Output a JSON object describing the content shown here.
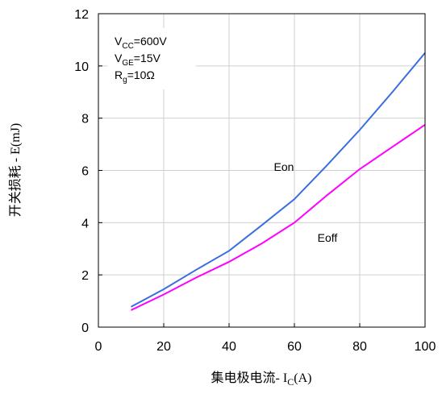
{
  "chart_data": {
    "type": "line",
    "x_label": {
      "main": "集电极电流- I",
      "sub": "C",
      "rest": "(A)"
    },
    "y_label": "开关损耗 - E(mJ)",
    "conditions": [
      {
        "main": "V",
        "sub": "CC",
        "rest": "=600V"
      },
      {
        "main": "V",
        "sub": "GE",
        "rest": "=15V"
      },
      {
        "main": "R",
        "sub": "g",
        "rest": "=10Ω"
      }
    ],
    "x": [
      10,
      20,
      30,
      40,
      50,
      60,
      70,
      80,
      90,
      100
    ],
    "series": [
      {
        "name": "Eon",
        "color": "#3a6de0",
        "values": [
          0.78,
          1.45,
          2.2,
          2.92,
          3.9,
          4.9,
          6.2,
          7.55,
          9.0,
          10.5
        ]
      },
      {
        "name": "Eoff",
        "color": "#ff00ff",
        "values": [
          0.65,
          1.25,
          1.9,
          2.5,
          3.2,
          4.0,
          5.05,
          6.05,
          6.9,
          7.75
        ]
      }
    ],
    "xlim": [
      0,
      100
    ],
    "xticks": [
      0,
      20,
      40,
      60,
      80,
      100
    ],
    "ylim": [
      0,
      12
    ],
    "yticks": [
      0,
      2,
      4,
      6,
      8,
      10,
      12
    ],
    "grid": true
  }
}
